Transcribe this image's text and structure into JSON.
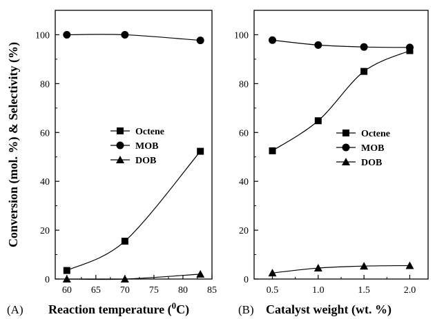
{
  "chart_data": [
    {
      "type": "line",
      "panel_label": "(A)",
      "xlabel": "Reaction temperature (",
      "xlabel_sup": "0",
      "xlabel_end": "C)",
      "ylabel": "Conversion (mol. %) & Selectivity (%)",
      "xlim": [
        58,
        85
      ],
      "ylim": [
        0,
        110
      ],
      "xticks": [
        "60",
        "65",
        "70",
        "75",
        "80",
        "85"
      ],
      "yticks": [
        "0",
        "20",
        "40",
        "60",
        "80",
        "100"
      ],
      "x": [
        60,
        70,
        83
      ],
      "series": [
        {
          "name": "Octene",
          "marker": "square",
          "values": [
            3.5,
            15.5,
            52.3
          ]
        },
        {
          "name": "MOB",
          "marker": "circle",
          "values": [
            100,
            100,
            97.7
          ]
        },
        {
          "name": "DOB",
          "marker": "triangle",
          "values": [
            0,
            0,
            2
          ]
        }
      ],
      "legend": "center-right",
      "grid": false
    },
    {
      "type": "line",
      "panel_label": "(B)",
      "xlabel": "Catalyst weight (wt. %)",
      "ylabel": "",
      "xlim": [
        0.3,
        2.2
      ],
      "ylim": [
        0,
        110
      ],
      "xticks": [
        "0.5",
        "1.0",
        "1.5",
        "2.0"
      ],
      "yticks": [
        "0",
        "20",
        "40",
        "60",
        "80",
        "100"
      ],
      "x": [
        0.5,
        1.0,
        1.5,
        2.0
      ],
      "series": [
        {
          "name": "Octene",
          "marker": "square",
          "values": [
            52.5,
            64.8,
            85,
            93.5
          ]
        },
        {
          "name": "MOB",
          "marker": "circle",
          "values": [
            97.8,
            95.8,
            95,
            94.8
          ]
        },
        {
          "name": "DOB",
          "marker": "triangle",
          "values": [
            2.5,
            4.5,
            5.3,
            5.5
          ]
        }
      ],
      "legend": "center-right",
      "grid": false
    }
  ]
}
